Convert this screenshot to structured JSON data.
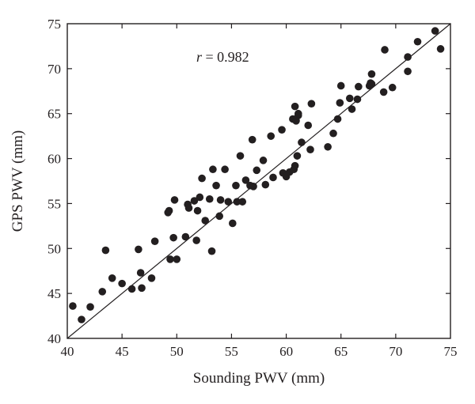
{
  "chart_data": {
    "type": "scatter",
    "xlabel": "Sounding PWV (mm)",
    "ylabel": "GPS PWV (mm)",
    "xlim": [
      40,
      75
    ],
    "ylim": [
      40,
      75
    ],
    "xticks": [
      "40",
      "45",
      "50",
      "55",
      "60",
      "65",
      "70",
      "75"
    ],
    "yticks": [
      "40",
      "45",
      "50",
      "55",
      "60",
      "65",
      "70",
      "75"
    ],
    "grid": false,
    "annotation": {
      "symbol": "r",
      "text": " = 0.982"
    },
    "reference_line": {
      "from": [
        40,
        40
      ],
      "to": [
        75,
        75
      ]
    },
    "marker_color": "#231f20",
    "points": [
      [
        40.5,
        43.6
      ],
      [
        41.3,
        42.1
      ],
      [
        42.1,
        43.5
      ],
      [
        43.2,
        45.2
      ],
      [
        43.5,
        49.8
      ],
      [
        44.1,
        46.7
      ],
      [
        45.0,
        46.1
      ],
      [
        45.9,
        45.5
      ],
      [
        46.5,
        49.9
      ],
      [
        46.7,
        47.3
      ],
      [
        46.8,
        45.6
      ],
      [
        47.7,
        46.7
      ],
      [
        48.0,
        50.8
      ],
      [
        49.2,
        54.0
      ],
      [
        49.3,
        54.2
      ],
      [
        49.4,
        48.8
      ],
      [
        49.7,
        51.2
      ],
      [
        49.8,
        55.4
      ],
      [
        50.0,
        48.8
      ],
      [
        50.8,
        51.3
      ],
      [
        51.0,
        54.9
      ],
      [
        51.1,
        54.5
      ],
      [
        51.6,
        55.3
      ],
      [
        51.8,
        50.9
      ],
      [
        51.9,
        54.2
      ],
      [
        52.1,
        55.7
      ],
      [
        52.3,
        57.8
      ],
      [
        52.6,
        53.1
      ],
      [
        53.0,
        55.5
      ],
      [
        53.2,
        49.7
      ],
      [
        53.3,
        58.8
      ],
      [
        53.6,
        57.0
      ],
      [
        53.9,
        53.6
      ],
      [
        54.0,
        55.4
      ],
      [
        54.4,
        58.8
      ],
      [
        54.7,
        55.2
      ],
      [
        55.1,
        52.8
      ],
      [
        55.4,
        57.0
      ],
      [
        55.5,
        55.2
      ],
      [
        55.8,
        60.3
      ],
      [
        56.0,
        55.2
      ],
      [
        56.3,
        57.6
      ],
      [
        56.7,
        57.0
      ],
      [
        56.9,
        62.1
      ],
      [
        57.0,
        56.9
      ],
      [
        57.3,
        58.7
      ],
      [
        57.9,
        59.8
      ],
      [
        58.1,
        57.1
      ],
      [
        58.6,
        62.5
      ],
      [
        58.8,
        57.9
      ],
      [
        59.6,
        63.2
      ],
      [
        59.7,
        58.4
      ],
      [
        60.0,
        58.0
      ],
      [
        60.3,
        58.5
      ],
      [
        60.6,
        64.4
      ],
      [
        60.7,
        58.8
      ],
      [
        60.8,
        59.2
      ],
      [
        60.8,
        65.8
      ],
      [
        60.9,
        64.2
      ],
      [
        61.0,
        60.3
      ],
      [
        61.1,
        64.8
      ],
      [
        61.1,
        65.0
      ],
      [
        61.4,
        61.8
      ],
      [
        62.0,
        63.7
      ],
      [
        62.2,
        61.0
      ],
      [
        62.3,
        66.1
      ],
      [
        63.8,
        61.3
      ],
      [
        64.3,
        62.8
      ],
      [
        64.7,
        64.4
      ],
      [
        64.9,
        66.2
      ],
      [
        65.0,
        68.1
      ],
      [
        65.8,
        66.7
      ],
      [
        66.0,
        65.5
      ],
      [
        66.5,
        66.6
      ],
      [
        66.6,
        68.0
      ],
      [
        67.6,
        68.1
      ],
      [
        67.7,
        68.4
      ],
      [
        67.8,
        69.4
      ],
      [
        67.8,
        68.3
      ],
      [
        68.9,
        67.4
      ],
      [
        69.0,
        72.1
      ],
      [
        69.7,
        67.9
      ],
      [
        71.1,
        71.3
      ],
      [
        71.1,
        69.7
      ],
      [
        72.0,
        73.0
      ],
      [
        73.6,
        74.2
      ],
      [
        74.1,
        72.2
      ]
    ]
  }
}
